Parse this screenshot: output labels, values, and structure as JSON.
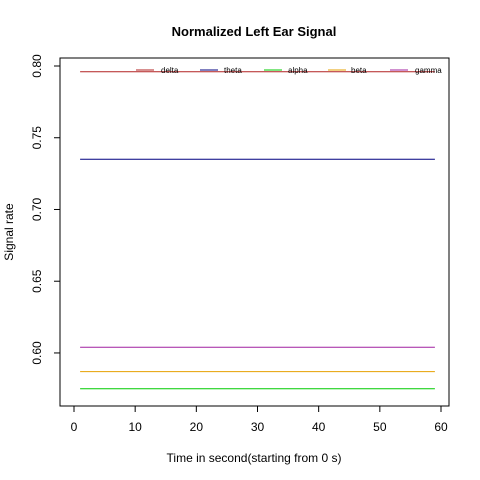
{
  "chart_data": {
    "type": "line",
    "title": "Normalized Left Ear Signal",
    "xlabel": "Time in second(starting from 0 s)",
    "ylabel": "Signal rate",
    "xlim": [
      0,
      60
    ],
    "ylim": [
      0.57,
      0.8
    ],
    "xticks": [
      0,
      10,
      20,
      30,
      40,
      50,
      60
    ],
    "yticks": [
      0.6,
      0.65,
      0.7,
      0.75,
      0.8
    ],
    "ytick_labels": [
      "0.60",
      "0.65",
      "0.70",
      "0.75",
      "0.80"
    ],
    "x": [
      1,
      59
    ],
    "grid": false,
    "legend_position": "top",
    "series": [
      {
        "name": "delta",
        "color": "#b22222",
        "values": [
          0.796,
          0.796
        ]
      },
      {
        "name": "theta",
        "color": "#000080",
        "values": [
          0.735,
          0.735
        ]
      },
      {
        "name": "alpha",
        "color": "#00cc00",
        "values": [
          0.575,
          0.575
        ]
      },
      {
        "name": "beta",
        "color": "#e6a000",
        "values": [
          0.587,
          0.587
        ]
      },
      {
        "name": "gamma",
        "color": "#a020a0",
        "values": [
          0.604,
          0.604
        ]
      }
    ]
  }
}
